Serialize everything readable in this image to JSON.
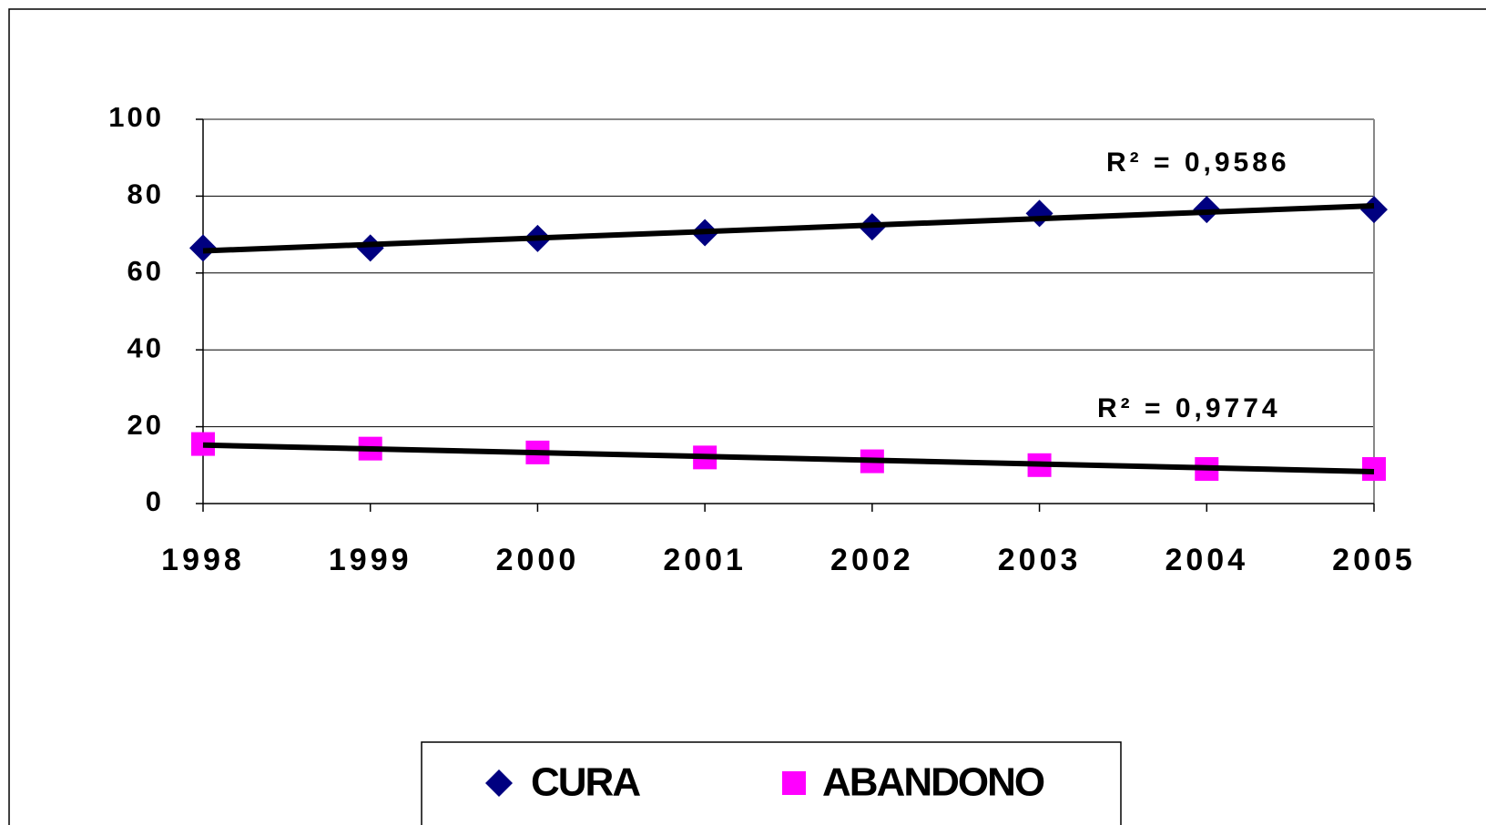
{
  "chart_data": {
    "type": "line",
    "categories": [
      "1998",
      "1999",
      "2000",
      "2001",
      "2002",
      "2003",
      "2004",
      "2005"
    ],
    "series": [
      {
        "name": "CURA",
        "color": "#000080",
        "marker": "diamond",
        "values": [
          66.5,
          66.5,
          69,
          70.5,
          72,
          75.5,
          76.5,
          76.5
        ]
      },
      {
        "name": "ABANDONO",
        "color": "#ff00ff",
        "marker": "square",
        "values": [
          15.5,
          14.3,
          13.3,
          12,
          11,
          10,
          9,
          9
        ]
      }
    ],
    "trendline": true,
    "annotations": [
      "R² = 0,9586",
      "R² = 0,9774"
    ],
    "ylim": [
      0,
      100
    ],
    "yticks": [
      0,
      20,
      40,
      60,
      80,
      100
    ],
    "grid": true,
    "legend": "bottom"
  }
}
